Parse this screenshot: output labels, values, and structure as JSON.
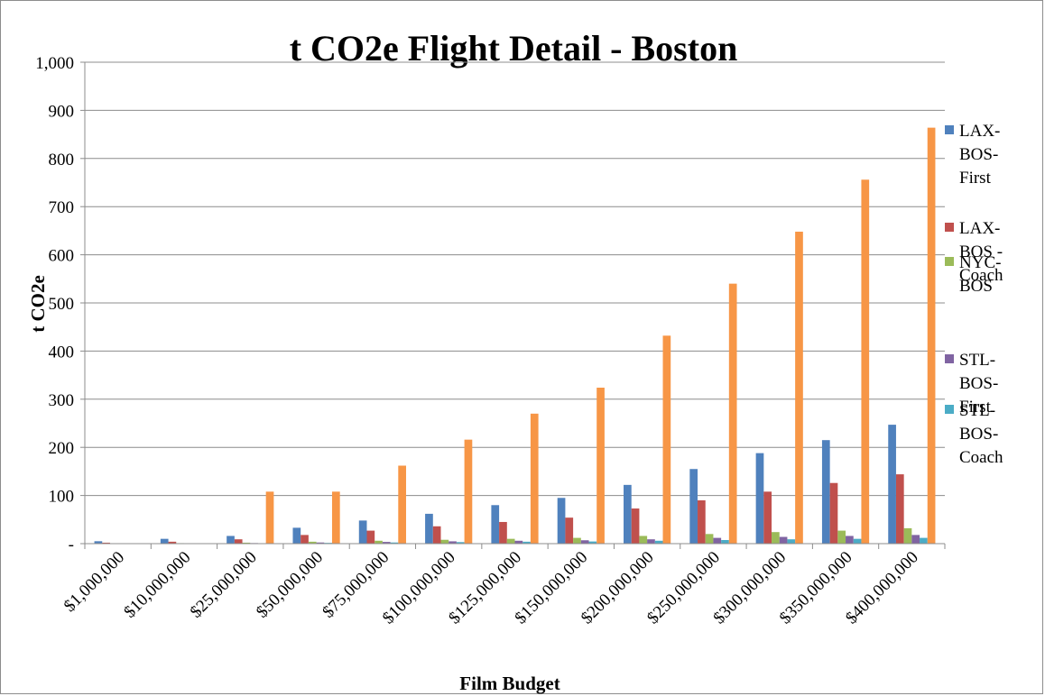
{
  "chart_data": {
    "type": "bar",
    "title": "t CO2e Flight Detail - Boston",
    "xlabel": "Film Budget",
    "ylabel": "t  CO2e",
    "ylim": [
      0,
      1000
    ],
    "y_ticks": [
      {
        "value": 0,
        "label": "-"
      },
      {
        "value": 100,
        "label": "100"
      },
      {
        "value": 200,
        "label": "200"
      },
      {
        "value": 300,
        "label": "300"
      },
      {
        "value": 400,
        "label": "400"
      },
      {
        "value": 500,
        "label": "500"
      },
      {
        "value": 600,
        "label": "600"
      },
      {
        "value": 700,
        "label": "700"
      },
      {
        "value": 800,
        "label": "800"
      },
      {
        "value": 900,
        "label": "900"
      },
      {
        "value": 1000,
        "label": "1,000"
      }
    ],
    "grid": true,
    "legend_position": "right",
    "categories": [
      "$1,000,000",
      "$10,000,000",
      "$25,000,000",
      "$50,000,000",
      "$75,000,000",
      "$100,000,000",
      "$125,000,000",
      "$150,000,000",
      "$200,000,000",
      "$250,000,000",
      "$300,000,000",
      "$350,000,000",
      "$400,000,000"
    ],
    "series": [
      {
        "name": "LAX-BOS-First",
        "legend_lines": [
          "LAX-",
          "BOS-",
          "First"
        ],
        "color": "#4f81bd",
        "values": [
          5,
          10,
          16,
          33,
          48,
          62,
          80,
          95,
          122,
          155,
          188,
          215,
          247
        ]
      },
      {
        "name": "LAX-BOS - Coach",
        "legend_lines": [
          "LAX-",
          "BOS -",
          "Coach"
        ],
        "color": "#c0504d",
        "values": [
          2,
          4,
          9,
          18,
          27,
          36,
          45,
          54,
          73,
          90,
          108,
          126,
          144
        ]
      },
      {
        "name": "NYC-BOS",
        "legend_lines": [
          "NYC-",
          "BOS"
        ],
        "color": "#9bbb59",
        "values": [
          0.5,
          1,
          2,
          4,
          6,
          8,
          10,
          12,
          16,
          20,
          24,
          27,
          32
        ]
      },
      {
        "name": "STL-BOS-First",
        "legend_lines": [
          "STL-",
          "BOS-",
          "First"
        ],
        "color": "#8064a2",
        "values": [
          0.3,
          0.6,
          1.2,
          2.4,
          3.6,
          4.8,
          6,
          7,
          9,
          12,
          14,
          16,
          18
        ]
      },
      {
        "name": "STL-BOS-Coach",
        "legend_lines": [
          "STL-",
          "BOS-",
          "Coach"
        ],
        "color": "#4bacc6",
        "values": [
          0.2,
          0.4,
          0.8,
          1.6,
          2.4,
          3.2,
          4,
          4.5,
          6,
          7.5,
          9,
          10,
          12
        ]
      },
      {
        "name": "",
        "legend_lines": [],
        "color": "#f79646",
        "values": [
          0,
          0,
          108,
          108,
          162,
          216,
          270,
          324,
          432,
          540,
          648,
          756,
          864
        ]
      }
    ]
  }
}
